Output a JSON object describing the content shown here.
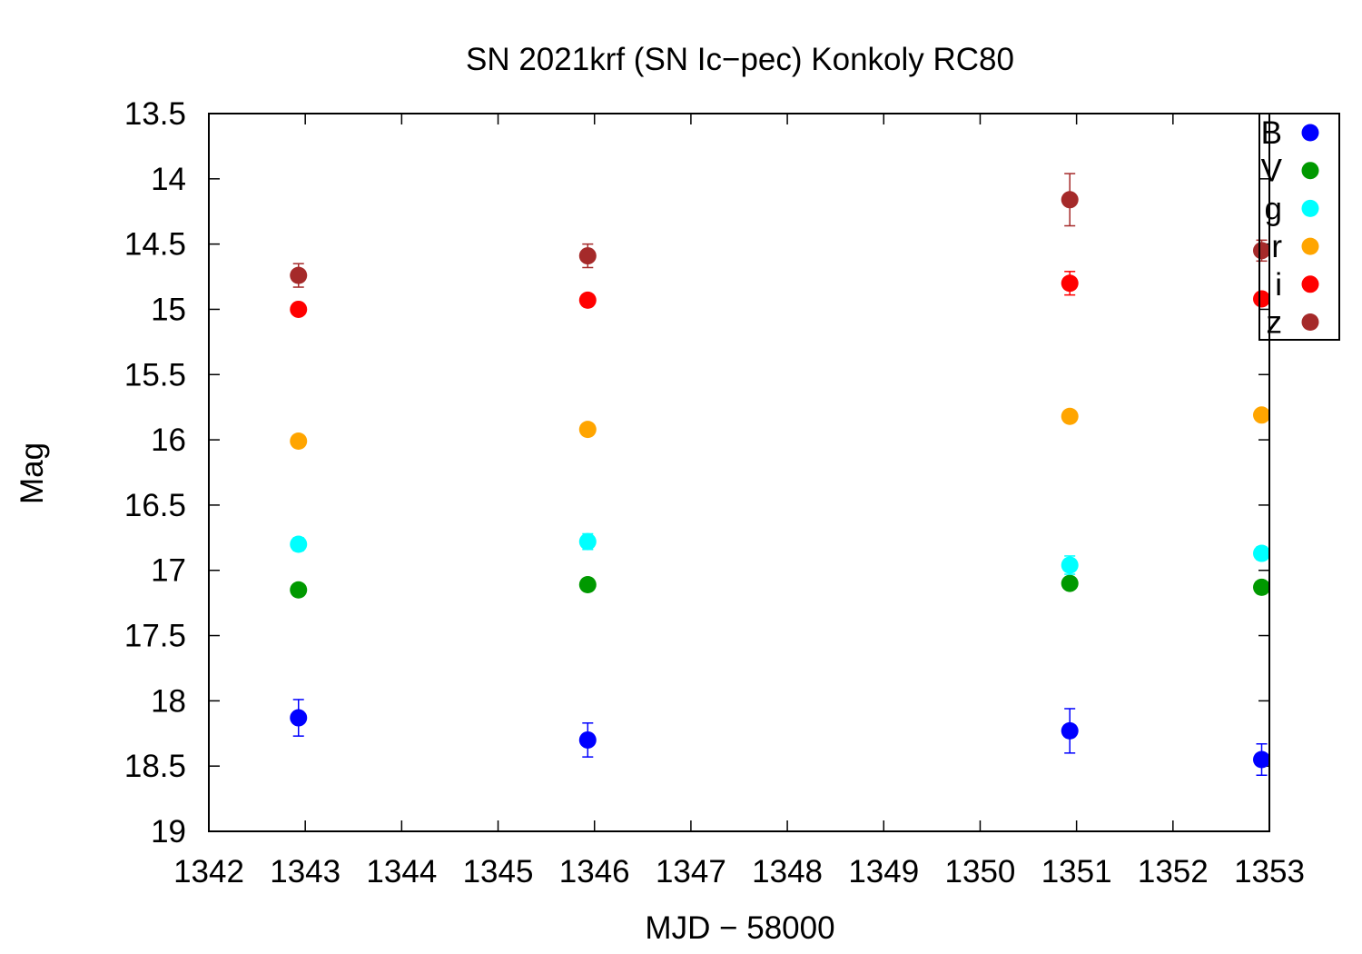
{
  "chart_data": {
    "type": "scatter",
    "title": "SN 2021krf (SN Ic−pec) Konkoly RC80",
    "xlabel": "MJD − 58000",
    "ylabel": "Mag",
    "xlim": [
      1342,
      1353
    ],
    "ylim": [
      19,
      13.5
    ],
    "y_inverted": true,
    "x_ticks": [
      "1342",
      "1343",
      "1344",
      "1345",
      "1346",
      "1347",
      "1348",
      "1349",
      "1350",
      "1351",
      "1352",
      "1353"
    ],
    "y_ticks": [
      "13.5",
      "14",
      "14.5",
      "15",
      "15.5",
      "16",
      "16.5",
      "17",
      "17.5",
      "18",
      "18.5",
      "19"
    ],
    "grid": false,
    "legend_position": "top-right",
    "series": [
      {
        "name": "B",
        "color": "#0000ff",
        "points": [
          {
            "x": 1342.93,
            "y": 18.13,
            "err": 0.14
          },
          {
            "x": 1345.93,
            "y": 18.3,
            "err": 0.13
          },
          {
            "x": 1350.93,
            "y": 18.23,
            "err": 0.17
          },
          {
            "x": 1352.92,
            "y": 18.45,
            "err": 0.12
          }
        ]
      },
      {
        "name": "V",
        "color": "#009900",
        "points": [
          {
            "x": 1342.93,
            "y": 17.15,
            "err": 0.03
          },
          {
            "x": 1345.93,
            "y": 17.11,
            "err": 0.03
          },
          {
            "x": 1350.93,
            "y": 17.1,
            "err": 0.04
          },
          {
            "x": 1352.92,
            "y": 17.13,
            "err": 0.04
          }
        ]
      },
      {
        "name": "g",
        "color": "#00ffff",
        "points": [
          {
            "x": 1342.93,
            "y": 16.8,
            "err": 0.05
          },
          {
            "x": 1345.93,
            "y": 16.78,
            "err": 0.06
          },
          {
            "x": 1350.93,
            "y": 16.96,
            "err": 0.07
          },
          {
            "x": 1352.92,
            "y": 16.87,
            "err": 0.05
          }
        ]
      },
      {
        "name": "r",
        "color": "#ffa500",
        "points": [
          {
            "x": 1342.93,
            "y": 16.01,
            "err": 0.02
          },
          {
            "x": 1345.93,
            "y": 15.92,
            "err": 0.02
          },
          {
            "x": 1350.93,
            "y": 15.82,
            "err": 0.02
          },
          {
            "x": 1352.92,
            "y": 15.81,
            "err": 0.02
          }
        ]
      },
      {
        "name": "i",
        "color": "#ff0000",
        "points": [
          {
            "x": 1342.93,
            "y": 15.0,
            "err": 0.02
          },
          {
            "x": 1345.93,
            "y": 14.93,
            "err": 0.02
          },
          {
            "x": 1350.93,
            "y": 14.8,
            "err": 0.09
          },
          {
            "x": 1352.92,
            "y": 14.92,
            "err": 0.02
          }
        ]
      },
      {
        "name": "z",
        "color": "#a52a2a",
        "points": [
          {
            "x": 1342.93,
            "y": 14.74,
            "err": 0.09
          },
          {
            "x": 1345.93,
            "y": 14.59,
            "err": 0.09
          },
          {
            "x": 1350.93,
            "y": 14.16,
            "err": 0.2
          },
          {
            "x": 1352.92,
            "y": 14.55,
            "err": 0.08
          }
        ]
      }
    ]
  }
}
